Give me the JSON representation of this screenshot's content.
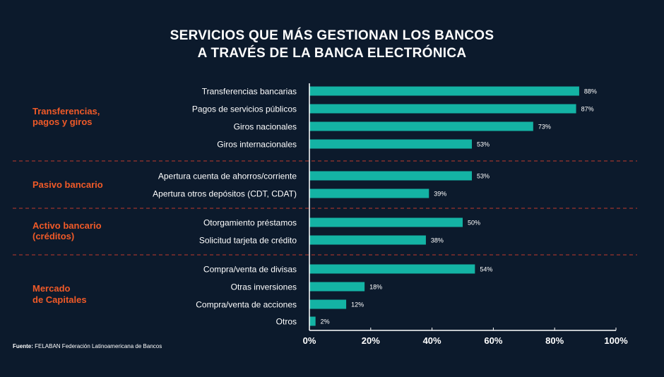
{
  "title": {
    "line1": "SERVICIOS QUE MÁS GESTIONAN LOS BANCOS",
    "line2": "A TRAVÉS DE LA BANCA ELECTRÓNICA"
  },
  "source": {
    "label": "Fuente:",
    "text": "FELABAN Federación Latinoamericana de Bancos"
  },
  "colors": {
    "background": "#0c1a2c",
    "bar": "#14b3a4",
    "group_label": "#f05a28",
    "divider": "#c0392b",
    "text": "#ffffff"
  },
  "chart_data": {
    "type": "bar",
    "orientation": "horizontal",
    "title": "SERVICIOS QUE MÁS GESTIONAN LOS BANCOS A TRAVÉS DE LA BANCA ELECTRÓNICA",
    "xlim": [
      0,
      100
    ],
    "x_ticks": [
      "0%",
      "20%",
      "40%",
      "60%",
      "80%",
      "100%"
    ],
    "grid": false,
    "groups": [
      {
        "name": "Transferencias, pagos y giros",
        "label_lines": [
          "Transferencias,",
          "pagos y giros"
        ],
        "items": [
          {
            "category": "Transferencias bancarias",
            "value": 88,
            "label": "88%"
          },
          {
            "category": "Pagos de servicios públicos",
            "value": 87,
            "label": "87%"
          },
          {
            "category": "Giros nacionales",
            "value": 73,
            "label": "73%"
          },
          {
            "category": "Giros internacionales",
            "value": 53,
            "label": "53%"
          }
        ]
      },
      {
        "name": "Pasivo bancario",
        "label_lines": [
          "Pasivo bancario"
        ],
        "items": [
          {
            "category": "Apertura cuenta de ahorros/corriente",
            "value": 53,
            "label": "53%"
          },
          {
            "category": "Apertura otros depósitos (CDT, CDAT)",
            "value": 39,
            "label": "39%"
          }
        ]
      },
      {
        "name": "Activo bancario (créditos)",
        "label_lines": [
          "Activo bancario",
          "(créditos)"
        ],
        "items": [
          {
            "category": "Otorgamiento préstamos",
            "value": 50,
            "label": "50%"
          },
          {
            "category": "Solicitud tarjeta de crédito",
            "value": 38,
            "label": "38%"
          }
        ]
      },
      {
        "name": "Mercado de Capitales",
        "label_lines": [
          "Mercado",
          "de Capitales"
        ],
        "items": [
          {
            "category": "Compra/venta de divisas",
            "value": 54,
            "label": "54%"
          },
          {
            "category": "Otras inversiones",
            "value": 18,
            "label": "18%"
          },
          {
            "category": "Compra/venta de acciones",
            "value": 12,
            "label": "12%"
          },
          {
            "category": "Otros",
            "value": 2,
            "label": "2%"
          }
        ]
      }
    ]
  }
}
